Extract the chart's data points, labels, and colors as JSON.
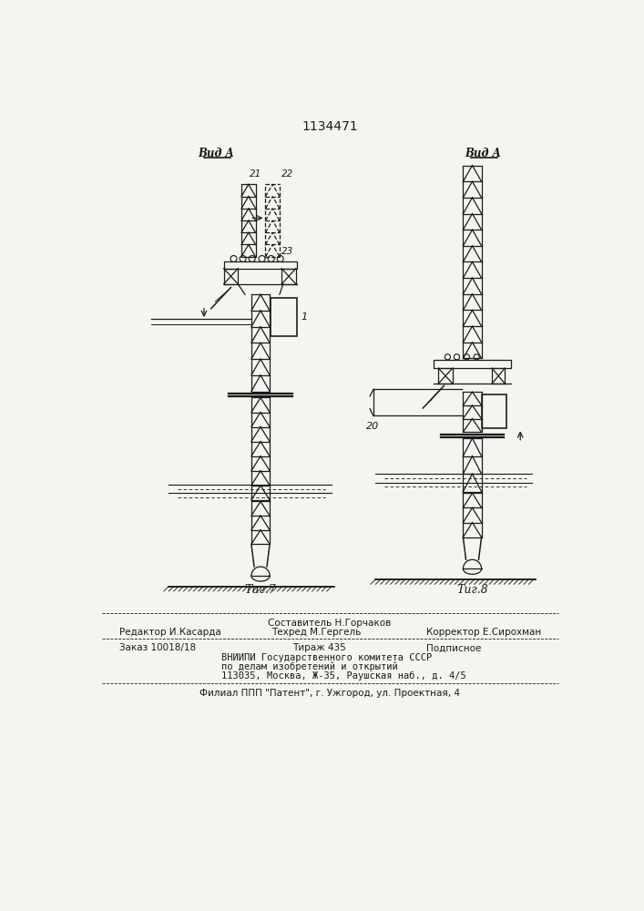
{
  "patent_number": "1134471",
  "fig7_label": "Τиг.7",
  "fig8_label": "Τиг.8",
  "vid_a_label": "Вид A",
  "label_21": "21",
  "label_22": "22",
  "label_23": "23",
  "label_1": "1",
  "label_20": "20",
  "editor_line": "Редактор И.Касарда",
  "compiler_line": "Составитель Н.Горчаков",
  "techred_line": "Техред М.Гергель",
  "corrector_line": "Корректор Е.Сирохман",
  "order_line": "Заказ 10018/18",
  "tiraz_line": "Тираж 435",
  "podpisnoe_line": "Подписное",
  "vniip_line1": "ВНИИПИ Государственного комитета СССР",
  "vniip_line2": "по делам изобретений и открытий",
  "vniip_line3": "113035, Москва, Ж-35, Раушская наб., д. 4/5",
  "filial_line": "Филиал ППП \"Патент\", г. Ужгород, ул. Проектная, 4",
  "bg_color": "#f5f4f0",
  "line_color": "#1a1a1a"
}
